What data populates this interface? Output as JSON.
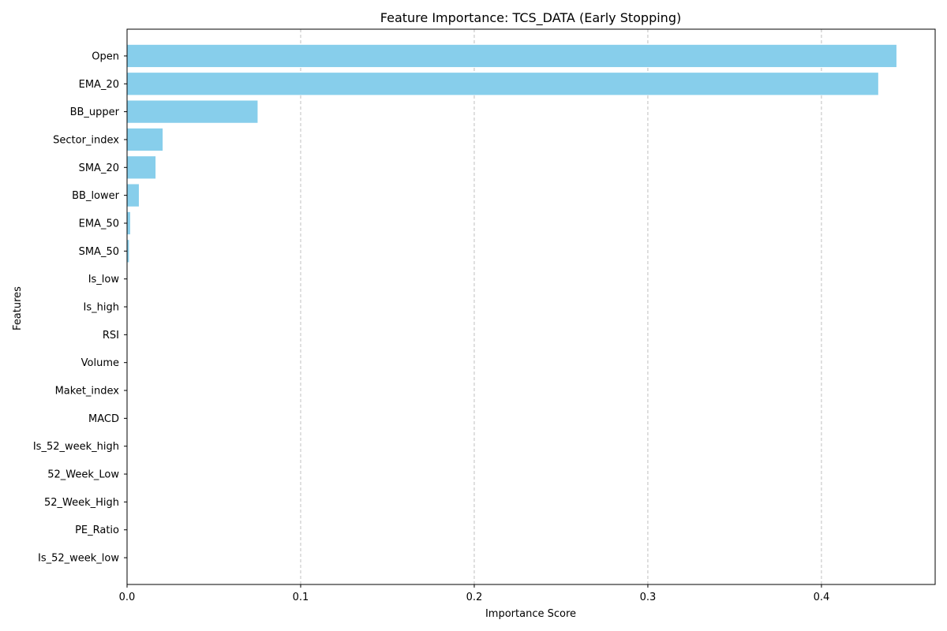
{
  "chart_data": {
    "type": "bar",
    "orientation": "horizontal",
    "title": "Feature Importance: TCS_DATA (Early Stopping)",
    "xlabel": "Importance Score",
    "ylabel": "Features",
    "xlim": [
      0,
      0.4655
    ],
    "xticks": [
      0.0,
      0.1,
      0.2,
      0.3,
      0.4
    ],
    "xtick_labels": [
      "0.0",
      "0.1",
      "0.2",
      "0.3",
      "0.4"
    ],
    "grid": "x-dashed",
    "bar_color": "#87ceeb",
    "categories": [
      "Open",
      "EMA_20",
      "BB_upper",
      "Sector_index",
      "SMA_20",
      "BB_lower",
      "EMA_50",
      "SMA_50",
      "Is_low",
      "Is_high",
      "RSI",
      "Volume",
      "Maket_index",
      "MACD",
      "Is_52_week_high",
      "52_Week_Low",
      "52_Week_High",
      "PE_Ratio",
      "Is_52_week_low"
    ],
    "values": [
      0.4432,
      0.4327,
      0.0752,
      0.0205,
      0.0164,
      0.0068,
      0.0018,
      0.0011,
      0.0002,
      0.0001,
      0.0,
      0.0,
      0.0,
      0.0,
      0.0,
      0.0,
      0.0,
      0.0,
      0.0
    ]
  }
}
